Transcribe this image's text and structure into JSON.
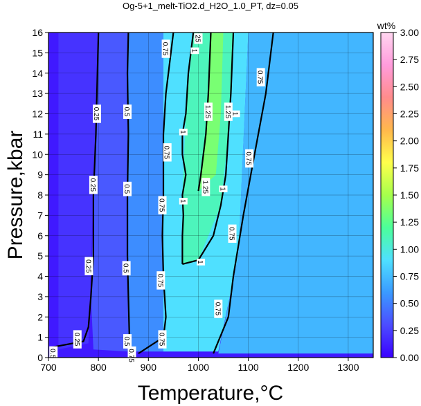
{
  "chart_data": {
    "type": "heatmap",
    "title": "Og-5+1_melt-TiO2.d_H2O_1.0_PT, dz=0.05",
    "xlabel": "Temperature,°C",
    "ylabel": "Pressure,kbar",
    "xlim": [
      700,
      1350
    ],
    "ylim": [
      0,
      16
    ],
    "x_ticks": [
      700,
      800,
      900,
      1000,
      1100,
      1200,
      1300
    ],
    "y_ticks": [
      0,
      1,
      2,
      3,
      4,
      5,
      6,
      7,
      8,
      9,
      10,
      11,
      12,
      13,
      14,
      15,
      16
    ],
    "grid": true,
    "colorbar": {
      "label": "wt%",
      "range": [
        0,
        3
      ],
      "ticks": [
        "0.00",
        "0.25",
        "0.50",
        "0.75",
        "1.00",
        "1.25",
        "1.50",
        "1.75",
        "2.00",
        "2.25",
        "2.50",
        "2.75",
        "3.00"
      ],
      "colors": [
        "#3a00ff",
        "#4c4cff",
        "#3a9aff",
        "#4fe0ff",
        "#4cff9a",
        "#a6ff4c",
        "#ffff4c",
        "#ffb84c",
        "#ff8c8c",
        "#ff9cdc",
        "#ffd6f0"
      ]
    },
    "series": [
      {
        "contour_level": "0.25",
        "points": [
          [
            705,
            0.5
          ],
          [
            770,
            0.8
          ],
          [
            780,
            1.5
          ],
          [
            785,
            3
          ],
          [
            790,
            5
          ],
          [
            790,
            8
          ],
          [
            795,
            11
          ],
          [
            798,
            14
          ],
          [
            800,
            16
          ]
        ]
      },
      {
        "contour_level": "0.5",
        "points": [
          [
            860,
            0.3
          ],
          [
            862,
            1
          ],
          [
            860,
            3
          ],
          [
            858,
            5
          ],
          [
            858,
            8
          ],
          [
            860,
            11
          ],
          [
            858,
            14
          ],
          [
            860,
            16
          ]
        ]
      },
      {
        "contour_level": "0.75",
        "points": [
          [
            880,
            0.2
          ],
          [
            930,
            1
          ],
          [
            935,
            2
          ],
          [
            930,
            4
          ],
          [
            928,
            6
          ],
          [
            930,
            8
          ],
          [
            930,
            11
          ],
          [
            935,
            13
          ],
          [
            950,
            16
          ]
        ]
      },
      {
        "contour_level": "0.75",
        "points": [
          [
            1030,
            0.2
          ],
          [
            1060,
            2
          ],
          [
            1070,
            4
          ],
          [
            1090,
            7
          ],
          [
            1105,
            9
          ],
          [
            1120,
            11
          ],
          [
            1135,
            13
          ],
          [
            1150,
            16
          ]
        ]
      },
      {
        "contour_level": "1",
        "points": [
          [
            968,
            4.6
          ],
          [
            968,
            6
          ],
          [
            970,
            7
          ],
          [
            968,
            8
          ],
          [
            975,
            9
          ],
          [
            968,
            10
          ],
          [
            968,
            11
          ],
          [
            975,
            12
          ],
          [
            980,
            14
          ],
          [
            990,
            16
          ]
        ]
      },
      {
        "contour_level": "1",
        "points": [
          [
            968,
            4.6
          ],
          [
            1000,
            4.8
          ],
          [
            1030,
            6
          ],
          [
            1045,
            7.5
          ],
          [
            1055,
            9
          ],
          [
            1060,
            11
          ],
          [
            1065,
            13
          ],
          [
            1070,
            16
          ]
        ]
      },
      {
        "contour_level": "1.25",
        "points": [
          [
            1000,
            8.2
          ],
          [
            1005,
            9
          ],
          [
            1010,
            10
          ],
          [
            1015,
            11
          ],
          [
            1020,
            13
          ],
          [
            1025,
            16
          ]
        ]
      }
    ],
    "contour_labels": [
      {
        "text": "0.25",
        "x": 797,
        "y": 12
      },
      {
        "text": "0.25",
        "x": 790,
        "y": 8.5
      },
      {
        "text": "0.25",
        "x": 781,
        "y": 4.5
      },
      {
        "text": "0.25",
        "x": 758,
        "y": 0.9
      },
      {
        "text": "0.5",
        "x": 710,
        "y": 0.2
      },
      {
        "text": "0.5",
        "x": 858,
        "y": 12.1
      },
      {
        "text": "0.5",
        "x": 858,
        "y": 8.3
      },
      {
        "text": "0.5",
        "x": 856,
        "y": 4.4
      },
      {
        "text": "0.5",
        "x": 858,
        "y": 0.8
      },
      {
        "text": "0.75",
        "x": 867,
        "y": 0.1
      },
      {
        "text": "0.75",
        "x": 938,
        "y": 10.1
      },
      {
        "text": "0.75",
        "x": 928,
        "y": 7.5
      },
      {
        "text": "0.75",
        "x": 925,
        "y": 3.8
      },
      {
        "text": "0.75",
        "x": 928,
        "y": 0.9
      },
      {
        "text": "0.75",
        "x": 1125,
        "y": 13.8
      },
      {
        "text": "0.75",
        "x": 1102,
        "y": 9.8
      },
      {
        "text": "0.75",
        "x": 1068,
        "y": 6.1
      },
      {
        "text": "0.75",
        "x": 1040,
        "y": 2.4
      },
      {
        "text": "0.75",
        "x": 935,
        "y": 15.2
      },
      {
        "text": "1",
        "x": 993,
        "y": 15.1
      },
      {
        "text": "1",
        "x": 970,
        "y": 11.1
      },
      {
        "text": "1",
        "x": 970,
        "y": 7.7
      },
      {
        "text": "1",
        "x": 1005,
        "y": 4.7
      },
      {
        "text": "1",
        "x": 1075,
        "y": 12.0
      },
      {
        "text": "1",
        "x": 1050,
        "y": 8.3
      },
      {
        "text": "1.25",
        "x": 1020,
        "y": 12.1
      },
      {
        "text": "1.25",
        "x": 1060,
        "y": 12.1
      },
      {
        "text": "1.25",
        "x": 1015,
        "y": 8.4
      },
      {
        "text": "25",
        "x": 1000,
        "y": 15.7
      }
    ],
    "fill_regions": [
      {
        "level": 0.1,
        "polygon": [
          [
            700,
            0
          ],
          [
            1350,
            0
          ],
          [
            1350,
            16
          ],
          [
            700,
            16
          ]
        ]
      },
      {
        "level": 0.2,
        "polygon": [
          [
            720,
            16
          ],
          [
            720,
            0.4
          ],
          [
            780,
            0.7
          ],
          [
            800,
            16
          ]
        ]
      },
      {
        "level": 0.35,
        "polygon": [
          [
            800,
            16
          ],
          [
            785,
            3
          ],
          [
            790,
            0.4
          ],
          [
            860,
            0.3
          ],
          [
            860,
            16
          ]
        ]
      },
      {
        "level": 0.55,
        "polygon": [
          [
            860,
            16
          ],
          [
            860,
            0.3
          ],
          [
            930,
            0.3
          ],
          [
            930,
            16
          ]
        ]
      },
      {
        "level": 0.72,
        "polygon": [
          [
            1100,
            16
          ],
          [
            1080,
            5
          ],
          [
            1040,
            0.2
          ],
          [
            1350,
            0.2
          ],
          [
            1350,
            16
          ]
        ]
      },
      {
        "level": 0.9,
        "polygon": [
          [
            930,
            16
          ],
          [
            930,
            0.3
          ],
          [
            1040,
            0.3
          ],
          [
            1080,
            5
          ],
          [
            1100,
            16
          ]
        ]
      },
      {
        "level": 1.1,
        "polygon": [
          [
            968,
            4.6
          ],
          [
            1000,
            4.8
          ],
          [
            1045,
            7.5
          ],
          [
            1060,
            11
          ],
          [
            1070,
            16
          ],
          [
            990,
            16
          ],
          [
            975,
            12
          ],
          [
            968,
            8
          ]
        ]
      },
      {
        "level": 1.35,
        "polygon": [
          [
            1000,
            8.2
          ],
          [
            1015,
            11
          ],
          [
            1025,
            16
          ],
          [
            1050,
            16
          ],
          [
            1045,
            12
          ],
          [
            1035,
            9
          ]
        ]
      }
    ]
  }
}
